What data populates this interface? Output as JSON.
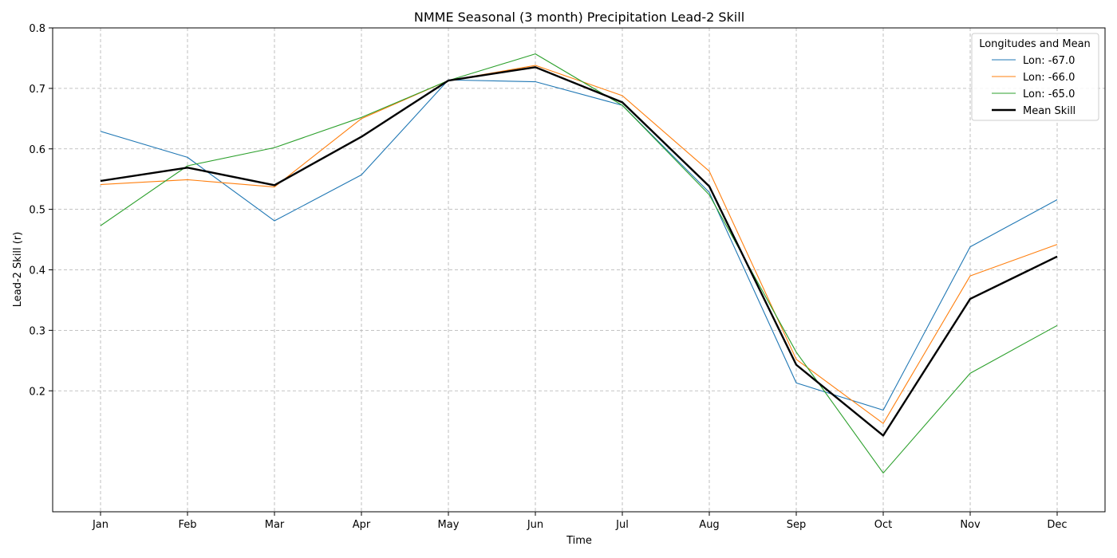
{
  "chart_data": {
    "type": "line",
    "title": "NMME Seasonal (3 month) Precipitation Lead-2 Skill",
    "xlabel": "Time",
    "ylabel": "Lead-2 Skill (r)",
    "categories": [
      "Jan",
      "Feb",
      "Mar",
      "Apr",
      "May",
      "Jun",
      "Jul",
      "Aug",
      "Sep",
      "Oct",
      "Nov",
      "Dec"
    ],
    "ylim": [
      0.0,
      0.8
    ],
    "yticks": [
      0.2,
      0.3,
      0.4,
      0.5,
      0.6,
      0.7,
      0.8
    ],
    "ytick_labels": [
      "0.2",
      "0.3",
      "0.4",
      "0.5",
      "0.6",
      "0.7",
      "0.8"
    ],
    "grid": true,
    "legend": {
      "title": "Longitudes and Mean",
      "placement": "top-right"
    },
    "series": [
      {
        "name": "Lon: -67.0",
        "color": "#1f77b4",
        "line_width": "thin",
        "values": [
          0.629,
          0.586,
          0.481,
          0.557,
          0.714,
          0.711,
          0.672,
          0.528,
          0.213,
          0.168,
          0.438,
          0.516
        ]
      },
      {
        "name": "Lon: -66.0",
        "color": "#ff7f0e",
        "line_width": "thin",
        "values": [
          0.541,
          0.549,
          0.537,
          0.65,
          0.713,
          0.738,
          0.688,
          0.563,
          0.252,
          0.146,
          0.39,
          0.442
        ]
      },
      {
        "name": "Lon: -65.0",
        "color": "#2ca02c",
        "line_width": "thin",
        "values": [
          0.473,
          0.572,
          0.602,
          0.652,
          0.713,
          0.757,
          0.672,
          0.524,
          0.264,
          0.064,
          0.229,
          0.308
        ]
      },
      {
        "name": "Mean Skill",
        "color": "#000000",
        "line_width": "thick",
        "values": [
          0.547,
          0.569,
          0.54,
          0.62,
          0.713,
          0.735,
          0.677,
          0.538,
          0.243,
          0.126,
          0.352,
          0.422
        ]
      }
    ]
  }
}
